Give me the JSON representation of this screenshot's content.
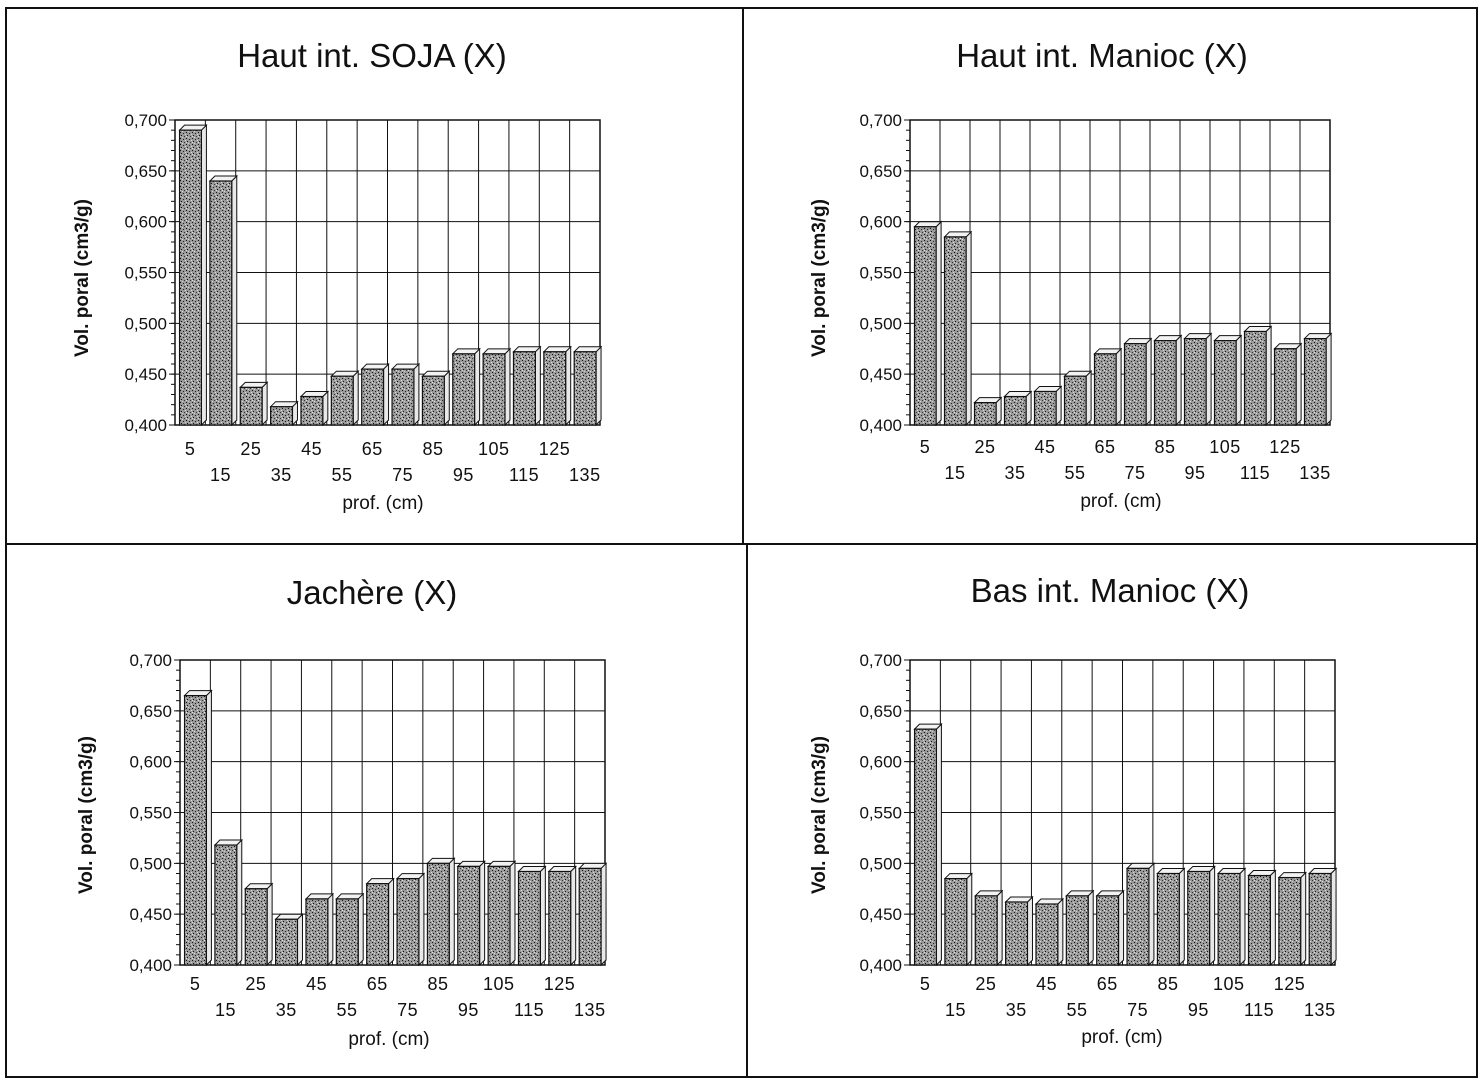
{
  "chart_data": [
    {
      "type": "bar",
      "title": "Haut int. SOJA (X)",
      "xlabel": "prof. (cm)",
      "ylabel": "Vol. poral (cm3/g)",
      "ylim": [
        0.4,
        0.7
      ],
      "yticks": [
        "0,400",
        "0,450",
        "0,500",
        "0,550",
        "0,600",
        "0,650",
        "0,700"
      ],
      "categories": [
        "5",
        "15",
        "25",
        "35",
        "45",
        "55",
        "65",
        "75",
        "85",
        "95",
        "105",
        "115",
        "125",
        "135"
      ],
      "values": [
        0.69,
        0.64,
        0.437,
        0.418,
        0.428,
        0.448,
        0.455,
        0.455,
        0.448,
        0.47,
        0.47,
        0.472,
        0.472,
        0.472
      ],
      "grid": true,
      "legend": "none"
    },
    {
      "type": "bar",
      "title": "Haut int. Manioc (X)",
      "xlabel": "prof. (cm)",
      "ylabel": "Vol. poral (cm3/g)",
      "ylim": [
        0.4,
        0.7
      ],
      "yticks": [
        "0,400",
        "0,450",
        "0,500",
        "0,550",
        "0,600",
        "0,650",
        "0,700"
      ],
      "categories": [
        "5",
        "15",
        "25",
        "35",
        "45",
        "55",
        "65",
        "75",
        "85",
        "95",
        "105",
        "115",
        "125",
        "135"
      ],
      "values": [
        0.595,
        0.585,
        0.422,
        0.428,
        0.433,
        0.448,
        0.47,
        0.48,
        0.483,
        0.485,
        0.483,
        0.492,
        0.475,
        0.485
      ],
      "grid": true,
      "legend": "none"
    },
    {
      "type": "bar",
      "title": "Jachère (X)",
      "xlabel": "prof. (cm)",
      "ylabel": "Vol. poral (cm3/g)",
      "ylim": [
        0.4,
        0.7
      ],
      "yticks": [
        "0,400",
        "0,450",
        "0,500",
        "0,550",
        "0,600",
        "0,650",
        "0,700"
      ],
      "categories": [
        "5",
        "15",
        "25",
        "35",
        "45",
        "55",
        "65",
        "75",
        "85",
        "95",
        "105",
        "115",
        "125",
        "135"
      ],
      "values": [
        0.665,
        0.518,
        0.475,
        0.445,
        0.465,
        0.465,
        0.48,
        0.485,
        0.5,
        0.497,
        0.497,
        0.492,
        0.492,
        0.495
      ],
      "grid": true,
      "legend": "none"
    },
    {
      "type": "bar",
      "title": "Bas int. Manioc (X)",
      "xlabel": "prof. (cm)",
      "ylabel": "Vol. poral (cm3/g)",
      "ylim": [
        0.4,
        0.7
      ],
      "yticks": [
        "0,400",
        "0,450",
        "0,500",
        "0,550",
        "0,600",
        "0,650",
        "0,700"
      ],
      "categories": [
        "5",
        "15",
        "25",
        "35",
        "45",
        "55",
        "65",
        "75",
        "85",
        "95",
        "105",
        "115",
        "125",
        "135"
      ],
      "values": [
        0.632,
        0.485,
        0.468,
        0.462,
        0.46,
        0.468,
        0.468,
        0.495,
        0.49,
        0.492,
        0.49,
        0.488,
        0.486,
        0.49
      ],
      "grid": true,
      "legend": "none"
    }
  ]
}
